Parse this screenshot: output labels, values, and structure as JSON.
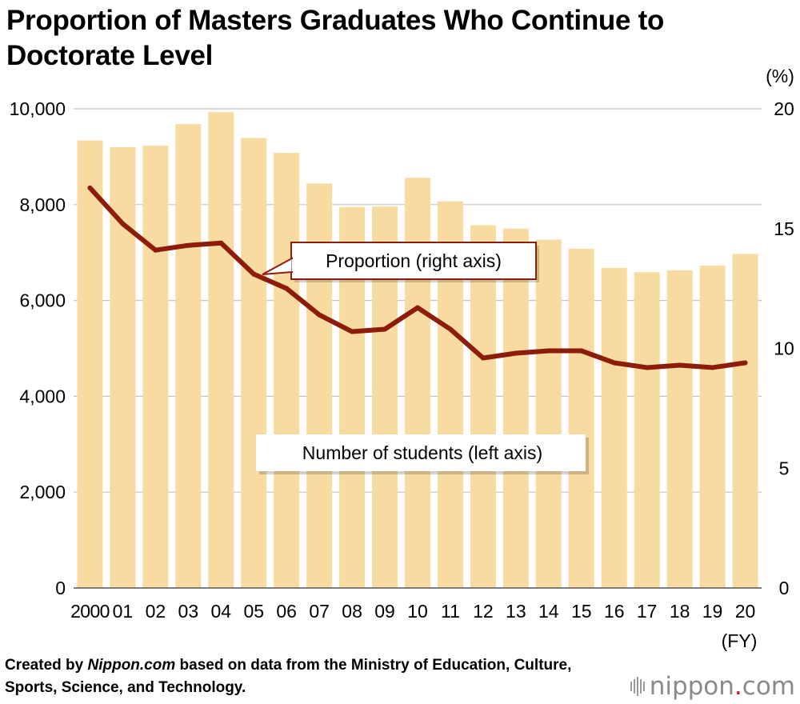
{
  "title": "Proportion of Masters Graduates Who Continue to Doctorate Level",
  "colors": {
    "bar": "#f8dba0",
    "line": "#8e1c0b",
    "grid": "#c4c4c4",
    "logo_dot": "#c8102e"
  },
  "chart_data": {
    "type": "bar+line",
    "categories": [
      "2000",
      "01",
      "02",
      "03",
      "04",
      "05",
      "06",
      "07",
      "08",
      "09",
      "10",
      "11",
      "12",
      "13",
      "14",
      "15",
      "16",
      "17",
      "18",
      "19",
      "20"
    ],
    "x_unit": "(FY)",
    "series": [
      {
        "name": "Number of students (left axis)",
        "type": "bar",
        "axis": "left",
        "values": [
          9340,
          9200,
          9230,
          9680,
          9930,
          9390,
          9080,
          8440,
          7950,
          7960,
          8560,
          8070,
          7570,
          7500,
          7270,
          7080,
          6680,
          6590,
          6630,
          6730,
          6970
        ]
      },
      {
        "name": "Proportion (right axis)",
        "type": "line",
        "axis": "right",
        "values": [
          16.7,
          15.2,
          14.1,
          14.3,
          14.4,
          13.1,
          12.5,
          11.4,
          10.7,
          10.8,
          11.7,
          10.8,
          9.6,
          9.8,
          9.9,
          9.9,
          9.4,
          9.2,
          9.3,
          9.2,
          9.4
        ]
      }
    ],
    "left_axis": {
      "ylim": [
        0,
        10000
      ],
      "ticks": [
        0,
        2000,
        4000,
        6000,
        8000,
        10000
      ],
      "tick_labels": [
        "0",
        "2,000",
        "4,000",
        "6,000",
        "8,000",
        "10,000"
      ]
    },
    "right_axis": {
      "ylim": [
        0,
        20
      ],
      "ticks": [
        0,
        5,
        10,
        15,
        20
      ],
      "tick_labels": [
        "0",
        "5",
        "10",
        "15",
        "20"
      ],
      "unit": "(%)"
    },
    "grid": true,
    "callouts": {
      "line": "Proportion (right axis)",
      "bar": "Number of students (left axis)"
    }
  },
  "source": {
    "prefix": "Created by ",
    "site": "Nippon.com",
    "suffix": " based on data from the Ministry of Education, Culture, Sports, Science, and Technology."
  },
  "logo": {
    "name": "nippon",
    "dot": ".",
    "tld": "com"
  }
}
